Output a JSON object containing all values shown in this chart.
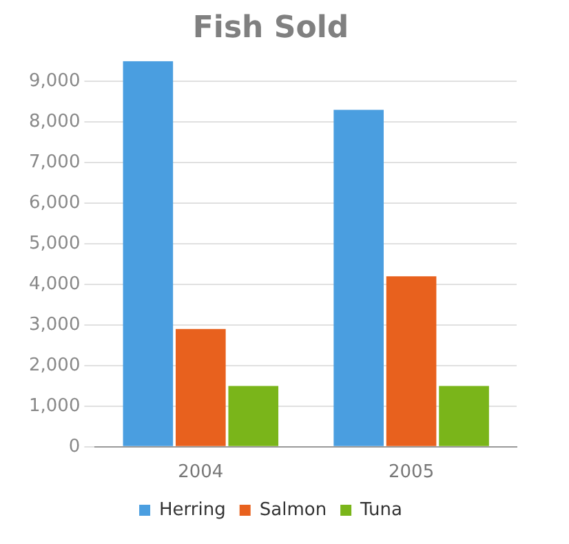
{
  "chart_data": {
    "type": "bar",
    "title": "Fish Sold",
    "categories": [
      "2004",
      "2005"
    ],
    "series": [
      {
        "name": "Herring",
        "color": "#4a9ee0",
        "values": [
          9500,
          8300
        ]
      },
      {
        "name": "Salmon",
        "color": "#e8611e",
        "values": [
          2900,
          4200
        ]
      },
      {
        "name": "Tuna",
        "color": "#7ab51a",
        "values": [
          1500,
          1500
        ]
      }
    ],
    "ylim": [
      0,
      9500
    ],
    "yticks": [
      {
        "value": 0,
        "label": "0"
      },
      {
        "value": 1000,
        "label": "1,000"
      },
      {
        "value": 2000,
        "label": "2,000"
      },
      {
        "value": 3000,
        "label": "3,000"
      },
      {
        "value": 4000,
        "label": "4,000"
      },
      {
        "value": 5000,
        "label": "5,000"
      },
      {
        "value": 6000,
        "label": "6,000"
      },
      {
        "value": 7000,
        "label": "7,000"
      },
      {
        "value": 8000,
        "label": "8,000"
      },
      {
        "value": 9000,
        "label": "9,000"
      }
    ],
    "grid": "y",
    "legend": "bottom"
  }
}
